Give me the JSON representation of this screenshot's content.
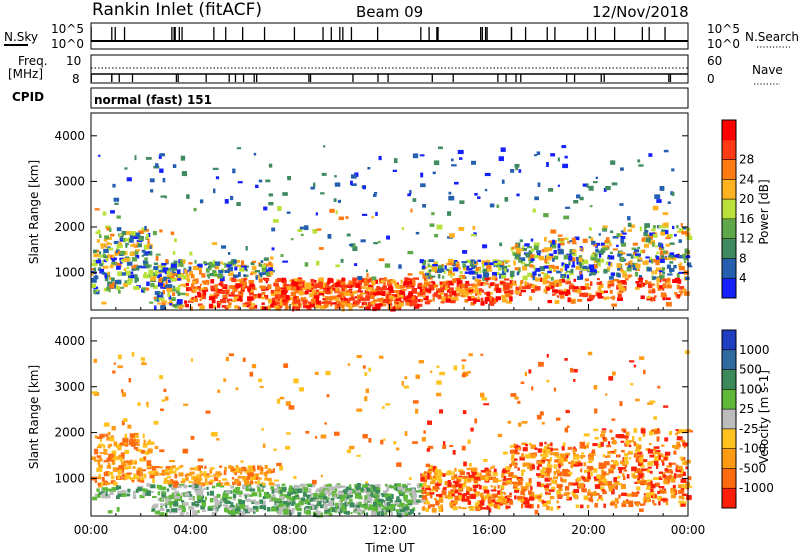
{
  "header": {
    "station": "Rankin Inlet (fitACF)",
    "beam": "Beam 09",
    "date": "12/Nov/2018"
  },
  "strips": {
    "nsky_label": "N.Sky",
    "nsearch_label": "N.Search",
    "nsky_ticks": [
      "10^5",
      "10^0"
    ],
    "nsearch_ticks": [
      "10^5",
      "10^0"
    ],
    "freq_label_1": "Freq.",
    "freq_label_2": "[MHz]",
    "freq_ticks": [
      "10",
      "8"
    ],
    "nave_label": "Nave",
    "nave_ticks": [
      "60",
      "0"
    ],
    "cpid_label": "CPID",
    "cpid_text": "normal (fast) 151"
  },
  "chart_data": [
    {
      "type": "heatmap",
      "panel": "power",
      "title": "",
      "xlabel": "Time UT",
      "ylabel": "Slant Range [km]",
      "x_ticks": [
        "00:00",
        "04:00",
        "08:00",
        "12:00",
        "16:00",
        "20:00",
        "00:00"
      ],
      "y_ticks": [
        "1000",
        "2000",
        "3000",
        "4000"
      ],
      "ylim": [
        180,
        4500
      ],
      "colorbar_label": "Power [dB]",
      "colorbar_ticks": [
        "4",
        "8",
        "12",
        "16",
        "20",
        "24",
        "28"
      ],
      "colorscale": [
        "#1520ff",
        "#245fb0",
        "#3f8a60",
        "#5fa84a",
        "#b8e23a",
        "#ffb21f",
        "#ff7b12",
        "#ff3a14",
        "#ff0000"
      ]
    },
    {
      "type": "heatmap",
      "panel": "velocity",
      "title": "",
      "xlabel": "Time UT",
      "ylabel": "Slant Range [km]",
      "x_ticks": [
        "00:00",
        "04:00",
        "08:00",
        "12:00",
        "16:00",
        "20:00",
        "00:00"
      ],
      "y_ticks": [
        "1000",
        "2000",
        "3000",
        "4000"
      ],
      "ylim": [
        180,
        4500
      ],
      "colorbar_label": "Velocity [m s-1]",
      "colorbar_ticks": [
        "1000",
        "500",
        "100",
        "25",
        "-25",
        "-100",
        "-500",
        "-1000"
      ],
      "colorscale": [
        "#1f3fc0",
        "#2e6aa0",
        "#3a8a5c",
        "#5fb83a",
        "#bcbcbc",
        "#ffc21f",
        "#ff9a14",
        "#ff6a10",
        "#ff1e0a"
      ]
    }
  ]
}
